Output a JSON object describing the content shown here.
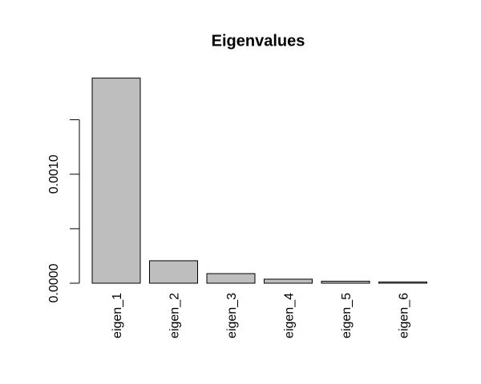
{
  "chart_data": {
    "type": "bar",
    "title": "Eigenvalues",
    "categories": [
      "eigen_1",
      "eigen_2",
      "eigen_3",
      "eigen_4",
      "eigen_5",
      "eigen_6"
    ],
    "values": [
      0.001882,
      0.000206,
      8.8e-05,
      3.7e-05,
      1.8e-05,
      1.1e-05
    ],
    "color": "#bebebe",
    "ylim": [
      0,
      0.00196
    ],
    "yticks": [
      {
        "value": 0,
        "label": "0.0000"
      },
      {
        "value": 0.001,
        "label": "0.0010"
      }
    ],
    "minor_yticks": [
      0.0005,
      0.0015
    ],
    "grid": false
  }
}
